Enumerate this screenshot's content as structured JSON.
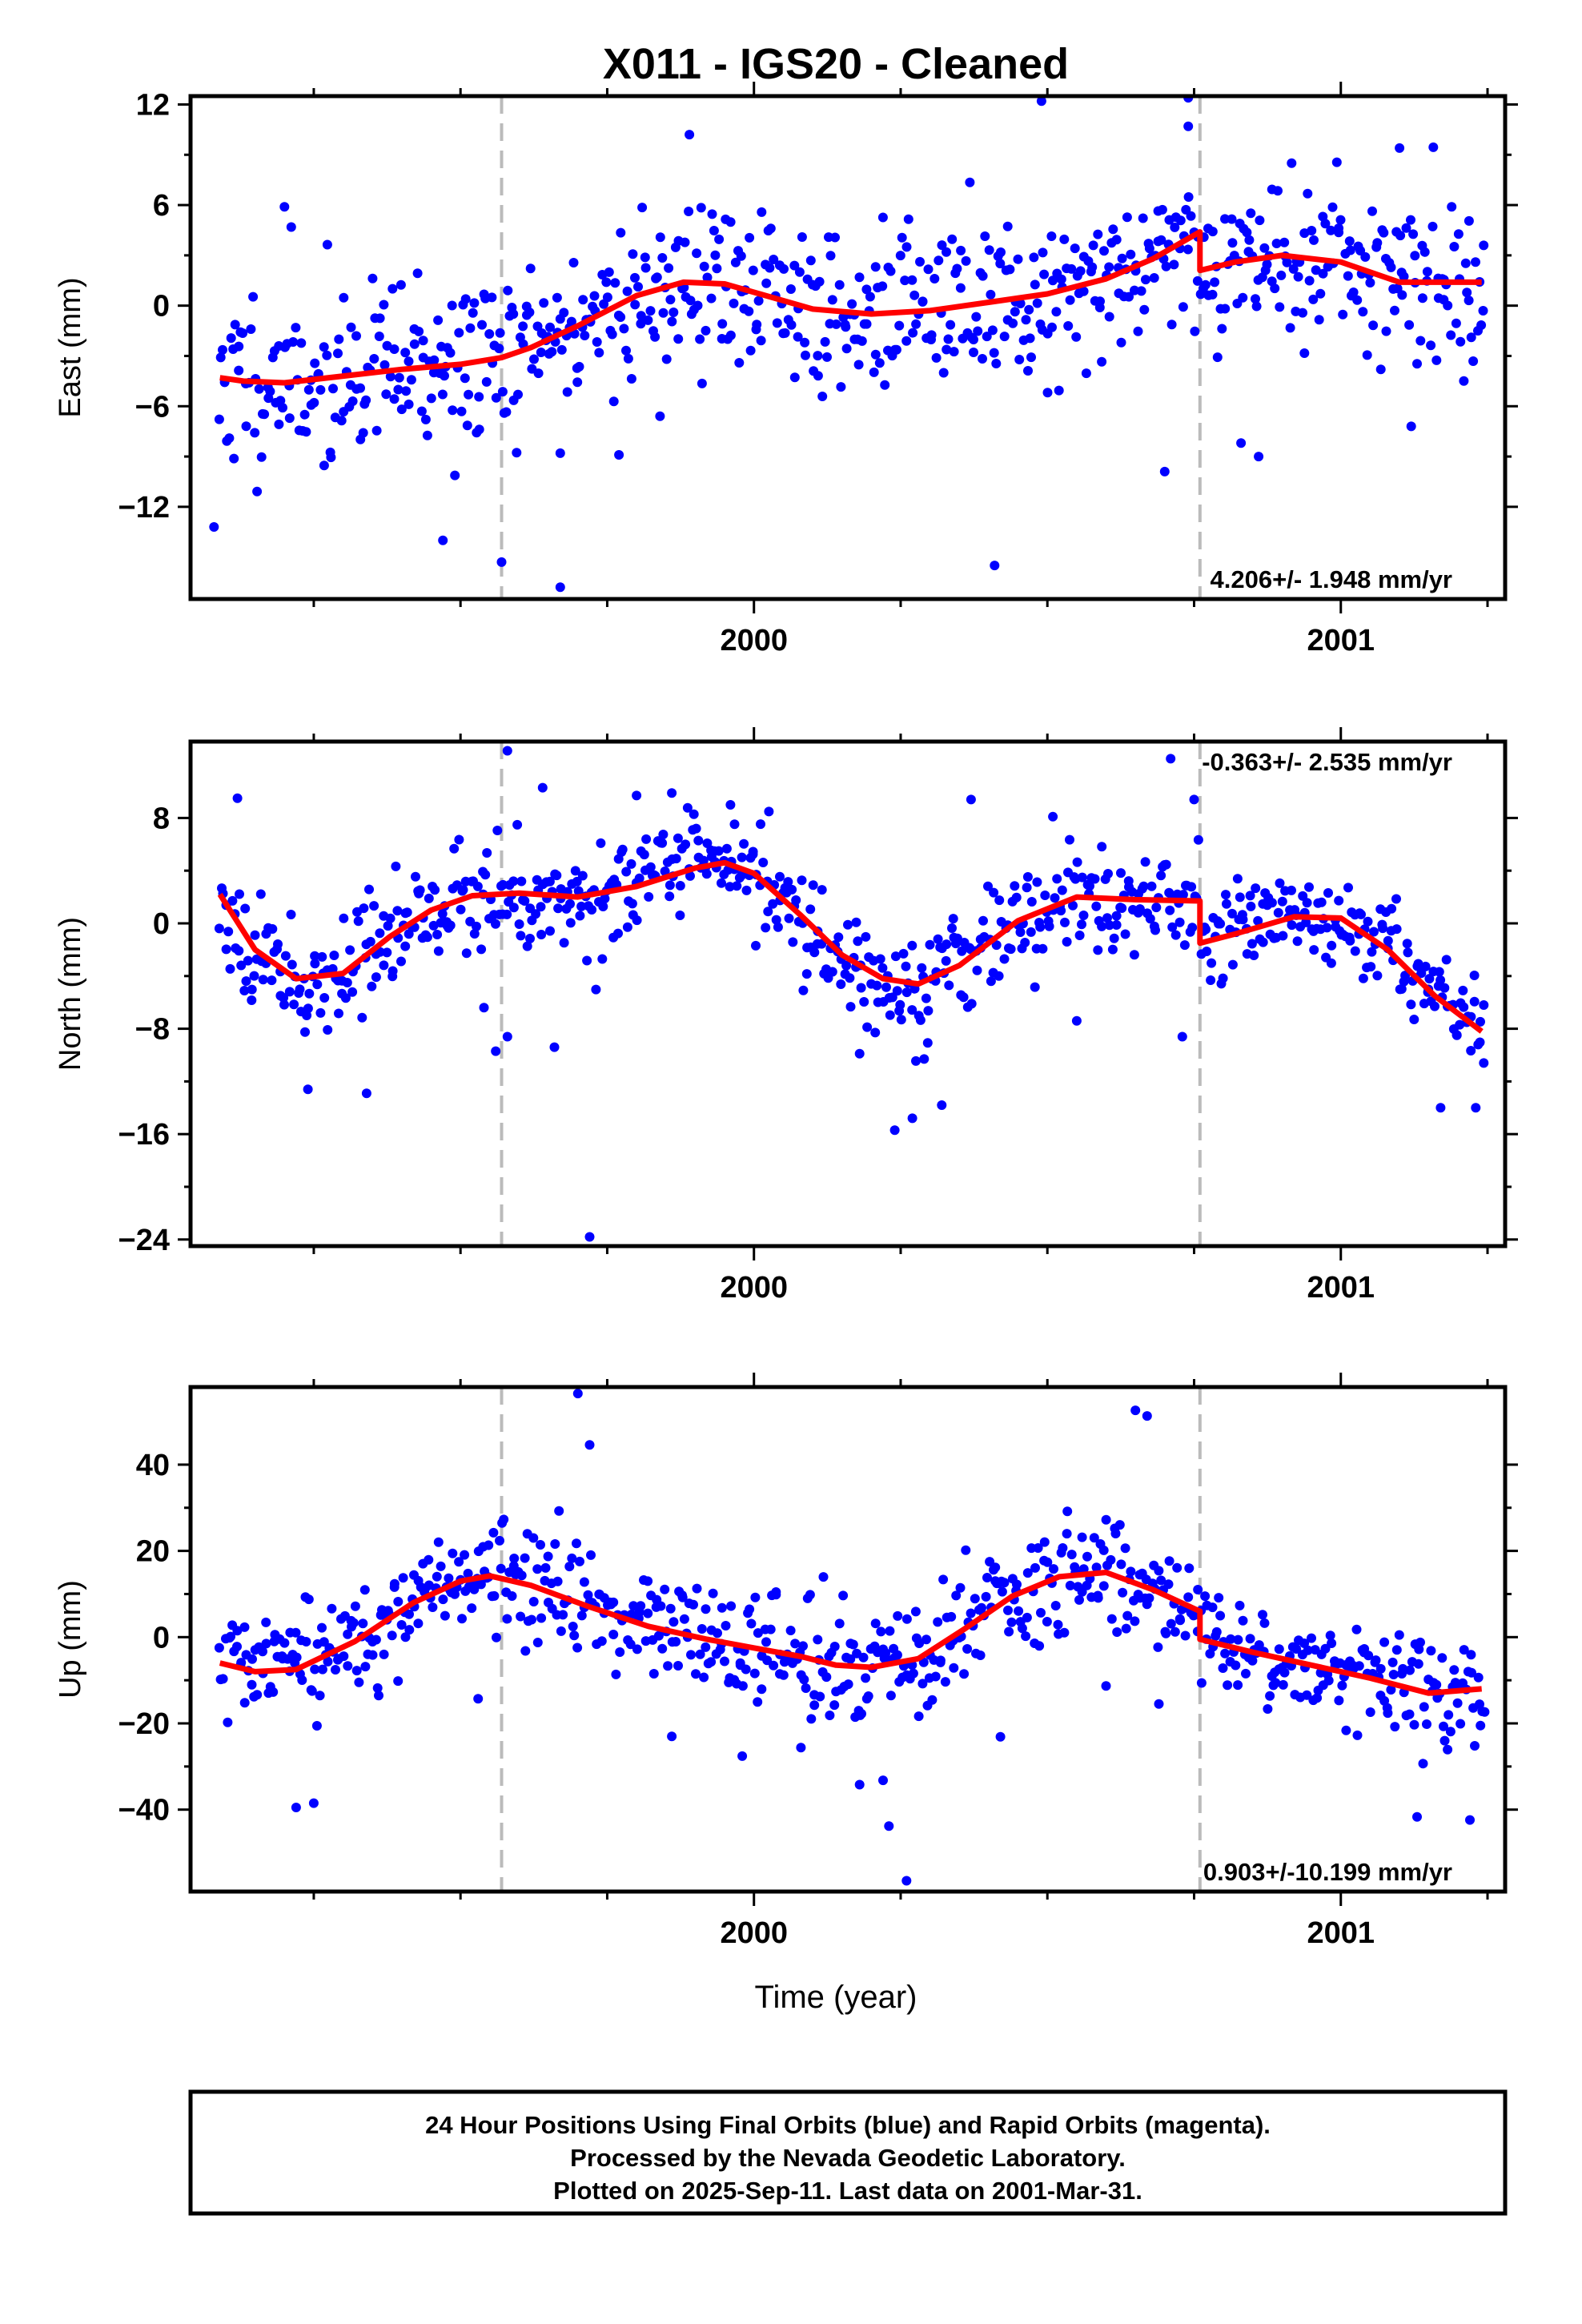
{
  "title": "X011  - IGS20 - Cleaned",
  "footer": {
    "lines": [
      "24 Hour Positions Using Final Orbits (blue) and Rapid Orbits (magenta).",
      "Processed by the Nevada Geodetic Laboratory.",
      "Plotted on 2025-Sep-11. Last data on 2001-Mar-31."
    ]
  },
  "colors": {
    "final_orbits": "#0000ff",
    "model_fit": "#ff0000",
    "break_lines": "#bbbbbb"
  },
  "chart_data": [
    {
      "type": "scatter",
      "panel": "east",
      "title": "",
      "xlabel": "",
      "ylabel": "East (mm)",
      "xlim": [
        1999.04,
        2001.28
      ],
      "ylim": [
        -17.5,
        12.5
      ],
      "yticks": [
        12,
        6,
        0,
        -6,
        -12
      ],
      "xticks": [
        2000,
        2001
      ],
      "breaks": [
        1999.57,
        2000.76
      ],
      "rate": "4.206+/- 1.948 mm/yr",
      "rate_position": "bottom-right",
      "model": {
        "x": [
          1999.09,
          1999.13,
          1999.2,
          1999.3,
          1999.4,
          1999.5,
          1999.57,
          1999.62,
          1999.7,
          1999.8,
          1999.88,
          1999.95,
          2000.02,
          2000.1,
          2000.2,
          2000.3,
          2000.4,
          2000.5,
          2000.6,
          2000.68,
          2000.76,
          2000.76,
          2000.82,
          2000.9,
          2001.0,
          2001.1,
          2001.24
        ],
        "y": [
          -4.3,
          -4.5,
          -4.6,
          -4.2,
          -3.8,
          -3.5,
          -3.1,
          -2.5,
          -1.2,
          0.6,
          1.4,
          1.3,
          0.6,
          -0.2,
          -0.5,
          -0.3,
          0.2,
          0.7,
          1.6,
          2.8,
          4.4,
          2.1,
          2.6,
          3.0,
          2.6,
          1.4,
          1.4
        ]
      },
      "points": [
        [
          1999.08,
          -13.2
        ],
        [
          1999.2,
          5.9
        ],
        [
          1999.47,
          -14
        ],
        [
          1999.57,
          -15.3
        ],
        [
          1999.67,
          -16.8
        ],
        [
          1999.67,
          -8.8
        ],
        [
          1999.77,
          -8.9
        ],
        [
          1999.84,
          -6.6
        ],
        [
          1999.89,
          10.2
        ],
        [
          2000.41,
          -15.5
        ],
        [
          2000.49,
          12.2
        ],
        [
          2000.7,
          -9.9
        ],
        [
          2000.74,
          10.7
        ],
        [
          2000.74,
          12.4
        ],
        [
          2000.83,
          -8.2
        ],
        [
          2000.86,
          -9
        ],
        [
          2001.1,
          9.4
        ],
        [
          2001.12,
          -7.2
        ]
      ],
      "generated": {
        "count": 700,
        "seed": 11,
        "spread": 2.6
      }
    },
    {
      "type": "scatter",
      "panel": "north",
      "title": "",
      "xlabel": "",
      "ylabel": "North (mm)",
      "xlim": [
        1999.04,
        2001.28
      ],
      "ylim": [
        -24.5,
        13.8
      ],
      "yticks": [
        8,
        0,
        -8,
        -16,
        -24
      ],
      "xticks": [
        2000,
        2001
      ],
      "breaks": [
        1999.57,
        2000.76
      ],
      "rate": "-0.363+/- 2.535 mm/yr",
      "rate_position": "top-right",
      "model": {
        "x": [
          1999.09,
          1999.15,
          1999.22,
          1999.3,
          1999.38,
          1999.45,
          1999.52,
          1999.6,
          1999.7,
          1999.8,
          1999.9,
          1999.95,
          2000.0,
          2000.08,
          2000.15,
          2000.22,
          2000.28,
          2000.35,
          2000.45,
          2000.55,
          2000.65,
          2000.76,
          2000.76,
          2000.82,
          2000.92,
          2001.0,
          2001.08,
          2001.16,
          2001.24
        ],
        "y": [
          2.2,
          -2.0,
          -4.2,
          -3.8,
          -1.0,
          1.0,
          2.1,
          2.3,
          2.0,
          2.8,
          4.2,
          4.6,
          3.8,
          0.6,
          -2.4,
          -4.2,
          -4.6,
          -3.2,
          0.2,
          2.0,
          1.8,
          1.7,
          -1.5,
          -0.8,
          0.5,
          0.4,
          -2.0,
          -5.5,
          -8.2
        ]
      },
      "points": [
        [
          1999.12,
          9.5
        ],
        [
          1999.24,
          -12.6
        ],
        [
          1999.34,
          -12.9
        ],
        [
          1999.54,
          -6.4
        ],
        [
          1999.56,
          -9.7
        ],
        [
          1999.58,
          -8.6
        ],
        [
          1999.58,
          13.1
        ],
        [
          1999.64,
          10.3
        ],
        [
          1999.66,
          -9.4
        ],
        [
          1999.72,
          -23.8
        ],
        [
          1999.8,
          9.7
        ],
        [
          1999.86,
          9.9
        ],
        [
          1999.96,
          9
        ],
        [
          2000.18,
          -9.9
        ],
        [
          2000.24,
          -15.7
        ],
        [
          2000.27,
          -14.8
        ],
        [
          2000.29,
          -10.3
        ],
        [
          2000.32,
          -13.8
        ],
        [
          2000.37,
          9.4
        ],
        [
          2000.55,
          -7.4
        ],
        [
          2000.71,
          12.5
        ],
        [
          2000.73,
          -8.6
        ],
        [
          2000.75,
          9.4
        ],
        [
          2001.17,
          -14
        ],
        [
          2001.23,
          -14
        ]
      ],
      "generated": {
        "count": 700,
        "seed": 23,
        "spread": 2.0
      }
    },
    {
      "type": "scatter",
      "panel": "up",
      "title": "",
      "xlabel": "Time (year)",
      "ylabel": "Up (mm)",
      "xlim": [
        1999.04,
        2001.28
      ],
      "ylim": [
        -59,
        58
      ],
      "yticks": [
        40,
        20,
        0,
        -20,
        -40
      ],
      "xticks": [
        2000,
        2001
      ],
      "breaks": [
        1999.57,
        2000.76
      ],
      "rate": "0.903+/-10.199 mm/yr",
      "rate_position": "bottom-right",
      "model": {
        "x": [
          1999.09,
          1999.15,
          1999.22,
          1999.32,
          1999.42,
          1999.5,
          1999.55,
          1999.62,
          1999.72,
          1999.82,
          1999.92,
          2000.0,
          2000.08,
          2000.14,
          2000.2,
          2000.28,
          2000.36,
          2000.44,
          2000.52,
          2000.6,
          2000.68,
          2000.76,
          2000.76,
          2000.85,
          2000.95,
          2001.05,
          2001.15,
          2001.24
        ],
        "y": [
          -6.0,
          -8.0,
          -7.5,
          -1.0,
          8.0,
          13.0,
          14.2,
          12.0,
          7.0,
          2.5,
          -0.5,
          -2.5,
          -4.5,
          -6.5,
          -7.0,
          -5.0,
          2.0,
          9.5,
          14.0,
          15.0,
          11.0,
          6.0,
          -0.5,
          -3.5,
          -6.5,
          -9.5,
          -13.0,
          -12.0
        ]
      },
      "points": [
        [
          1999.22,
          -39.5
        ],
        [
          1999.25,
          -38.5
        ],
        [
          1999.53,
          -14.3
        ],
        [
          1999.7,
          56.5
        ],
        [
          1999.72,
          44.6
        ],
        [
          1999.86,
          -23
        ],
        [
          1999.98,
          -27.6
        ],
        [
          2000.08,
          -25.6
        ],
        [
          2000.18,
          -34.2
        ],
        [
          2000.22,
          -33.2
        ],
        [
          2000.23,
          -43.8
        ],
        [
          2000.26,
          -56.5
        ],
        [
          2000.42,
          -23.1
        ],
        [
          2000.6,
          -11.3
        ],
        [
          2000.65,
          52.6
        ],
        [
          2000.67,
          51.3
        ],
        [
          2000.69,
          -15.5
        ],
        [
          2001.13,
          -41.7
        ],
        [
          2001.22,
          -42.4
        ]
      ],
      "generated": {
        "count": 700,
        "seed": 37,
        "spread": 6.5
      }
    }
  ]
}
